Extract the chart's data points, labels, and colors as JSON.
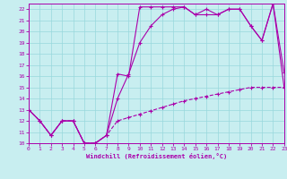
{
  "xlabel": "Windchill (Refroidissement éolien,°C)",
  "bg_color": "#c8eef0",
  "line_color": "#aa00aa",
  "grid_color": "#98d8dc",
  "xlim": [
    0,
    23
  ],
  "ylim": [
    10,
    22.5
  ],
  "ytick_vals": [
    10,
    11,
    12,
    13,
    14,
    15,
    16,
    17,
    18,
    19,
    20,
    21,
    22
  ],
  "xtick_vals": [
    0,
    1,
    2,
    3,
    4,
    5,
    6,
    7,
    8,
    9,
    10,
    11,
    12,
    13,
    14,
    15,
    16,
    17,
    18,
    19,
    20,
    21,
    22,
    23
  ],
  "curve1_x": [
    0,
    1,
    2,
    3,
    4,
    5,
    6,
    7,
    8,
    9,
    10,
    11,
    12,
    13,
    14,
    15,
    16,
    17,
    18,
    19,
    20,
    21,
    22,
    23
  ],
  "curve1_y": [
    13,
    12,
    10.7,
    12,
    12,
    10,
    10,
    10.7,
    16.2,
    16.0,
    22.2,
    22.2,
    22.2,
    22.2,
    22.2,
    21.5,
    21.5,
    21.5,
    22.0,
    22.0,
    20.5,
    19.2,
    22.5,
    16.3
  ],
  "curve2_x": [
    0,
    1,
    2,
    3,
    4,
    5,
    6,
    7,
    8,
    9,
    10,
    11,
    12,
    13,
    14,
    15,
    16,
    17,
    18,
    19,
    20,
    21,
    22,
    23
  ],
  "curve2_y": [
    13,
    12,
    10.7,
    12,
    12,
    10,
    10,
    10.7,
    14.0,
    16.2,
    19.0,
    20.5,
    21.5,
    22.0,
    22.2,
    21.5,
    22.0,
    21.5,
    22.0,
    22.0,
    20.5,
    19.2,
    22.5,
    15.0
  ],
  "curve3_x": [
    0,
    1,
    2,
    3,
    4,
    5,
    6,
    7,
    8,
    9,
    10,
    11,
    12,
    13,
    14,
    15,
    16,
    17,
    18,
    19,
    20,
    21,
    22,
    23
  ],
  "curve3_y": [
    13,
    12,
    10.7,
    12,
    12,
    10,
    10,
    10.7,
    12.0,
    12.3,
    12.6,
    12.9,
    13.2,
    13.5,
    13.8,
    14.0,
    14.2,
    14.4,
    14.6,
    14.8,
    15.0,
    15.0,
    15.0,
    15.0
  ]
}
